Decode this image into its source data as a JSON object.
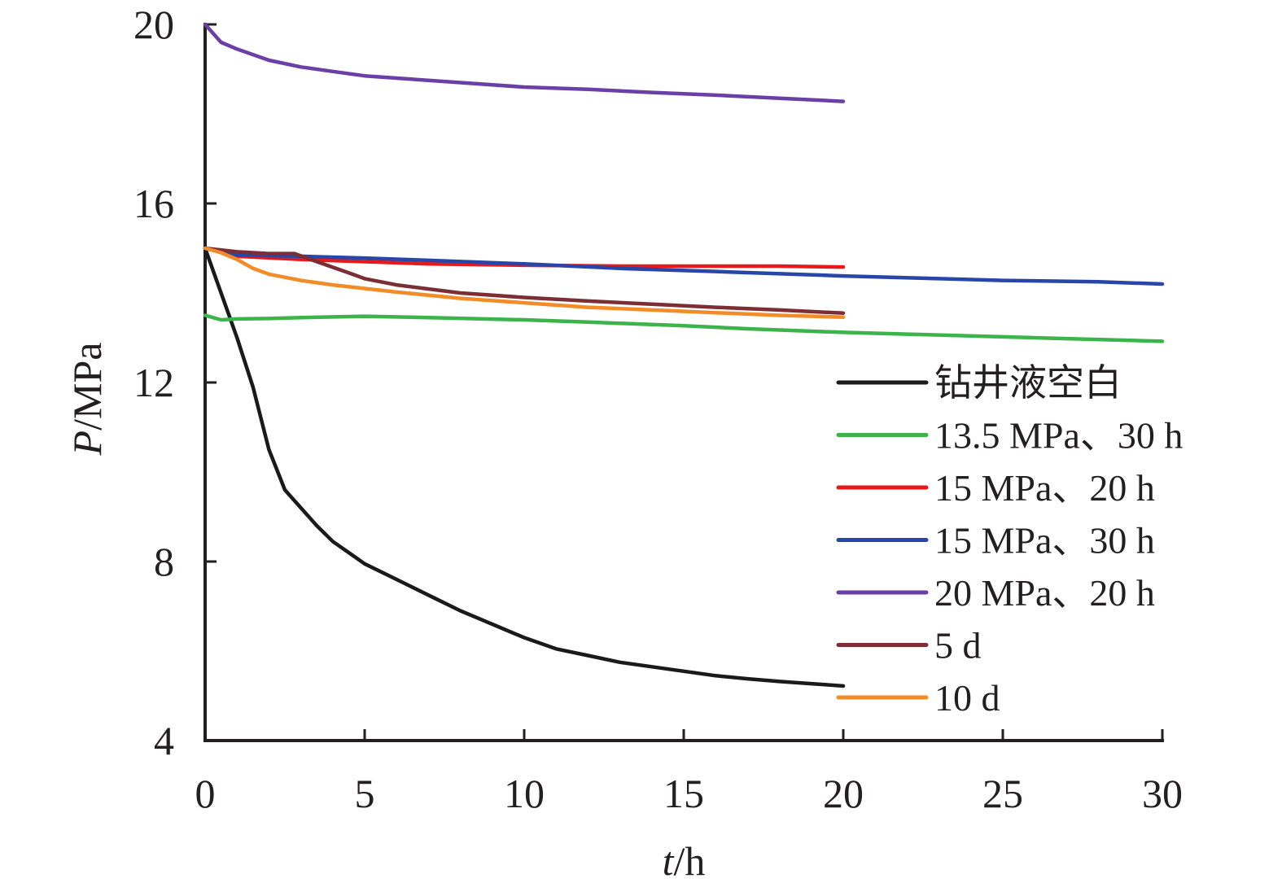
{
  "chart_data": {
    "type": "line",
    "xlabel": {
      "var": "t",
      "unit": "/h"
    },
    "ylabel": {
      "var": "P",
      "unit": "/MPa"
    },
    "xlim": [
      0,
      30
    ],
    "ylim": [
      4,
      20
    ],
    "xticks": [
      0,
      5,
      10,
      15,
      20,
      25,
      30
    ],
    "yticks": [
      4,
      8,
      12,
      16,
      20
    ],
    "grid": false,
    "legend_position": "right-lower",
    "series": [
      {
        "name": "钻井液空白",
        "color": "#1a1a1a",
        "x": [
          0,
          0.5,
          1,
          1.5,
          2,
          2.5,
          3,
          3.5,
          4,
          4.5,
          5,
          6,
          7,
          8,
          9,
          10,
          11,
          12,
          13,
          14,
          15,
          16,
          17,
          18,
          19,
          20
        ],
        "y": [
          15.0,
          14.0,
          13.0,
          11.9,
          10.5,
          9.6,
          9.2,
          8.8,
          8.45,
          8.2,
          7.95,
          7.6,
          7.25,
          6.9,
          6.6,
          6.3,
          6.05,
          5.9,
          5.75,
          5.65,
          5.55,
          5.45,
          5.38,
          5.32,
          5.27,
          5.22
        ]
      },
      {
        "name": "13.5 MPa、30 h",
        "color": "#3cb44b",
        "x": [
          0,
          0.5,
          1,
          2,
          3,
          5,
          7,
          10,
          12,
          15,
          17,
          20,
          22,
          25,
          27,
          30
        ],
        "y": [
          13.5,
          13.4,
          13.42,
          13.43,
          13.45,
          13.48,
          13.45,
          13.4,
          13.35,
          13.27,
          13.2,
          13.12,
          13.08,
          13.02,
          12.98,
          12.92
        ]
      },
      {
        "name": "15 MPa、20 h",
        "color": "#e41a1c",
        "x": [
          0,
          1,
          3,
          5,
          7,
          10,
          13,
          16,
          18,
          20
        ],
        "y": [
          15.0,
          14.82,
          14.75,
          14.7,
          14.65,
          14.62,
          14.6,
          14.6,
          14.6,
          14.58
        ]
      },
      {
        "name": "15 MPa、30 h",
        "color": "#2846a8",
        "x": [
          0,
          1,
          3,
          5,
          7,
          10,
          13,
          16,
          20,
          23,
          25,
          28,
          30
        ],
        "y": [
          15.0,
          14.85,
          14.82,
          14.78,
          14.73,
          14.65,
          14.55,
          14.48,
          14.38,
          14.32,
          14.28,
          14.25,
          14.2
        ]
      },
      {
        "name": "20 MPa、20 h",
        "color": "#6a3fa6",
        "x": [
          0,
          0.5,
          1,
          2,
          3,
          4,
          5,
          6,
          8,
          10,
          12,
          14,
          16,
          18,
          20
        ],
        "y": [
          20.0,
          19.6,
          19.45,
          19.2,
          19.05,
          18.95,
          18.85,
          18.8,
          18.7,
          18.6,
          18.55,
          18.48,
          18.42,
          18.35,
          18.28
        ]
      },
      {
        "name": "5 d",
        "color": "#7b2e34",
        "x": [
          0,
          1,
          2,
          2.8,
          3.5,
          4.5,
          5,
          6,
          8,
          10,
          12,
          14,
          16,
          18,
          20
        ],
        "y": [
          15.0,
          14.92,
          14.88,
          14.88,
          14.7,
          14.45,
          14.32,
          14.18,
          14.0,
          13.9,
          13.82,
          13.75,
          13.68,
          13.62,
          13.55
        ]
      },
      {
        "name": "10 d",
        "color": "#f28c28",
        "x": [
          0,
          0.5,
          1,
          1.5,
          2,
          3,
          4,
          5,
          6,
          8,
          10,
          12,
          14,
          16,
          18,
          20
        ],
        "y": [
          15.0,
          14.9,
          14.75,
          14.55,
          14.42,
          14.28,
          14.18,
          14.1,
          14.02,
          13.88,
          13.78,
          13.68,
          13.62,
          13.56,
          13.5,
          13.46
        ]
      }
    ]
  }
}
